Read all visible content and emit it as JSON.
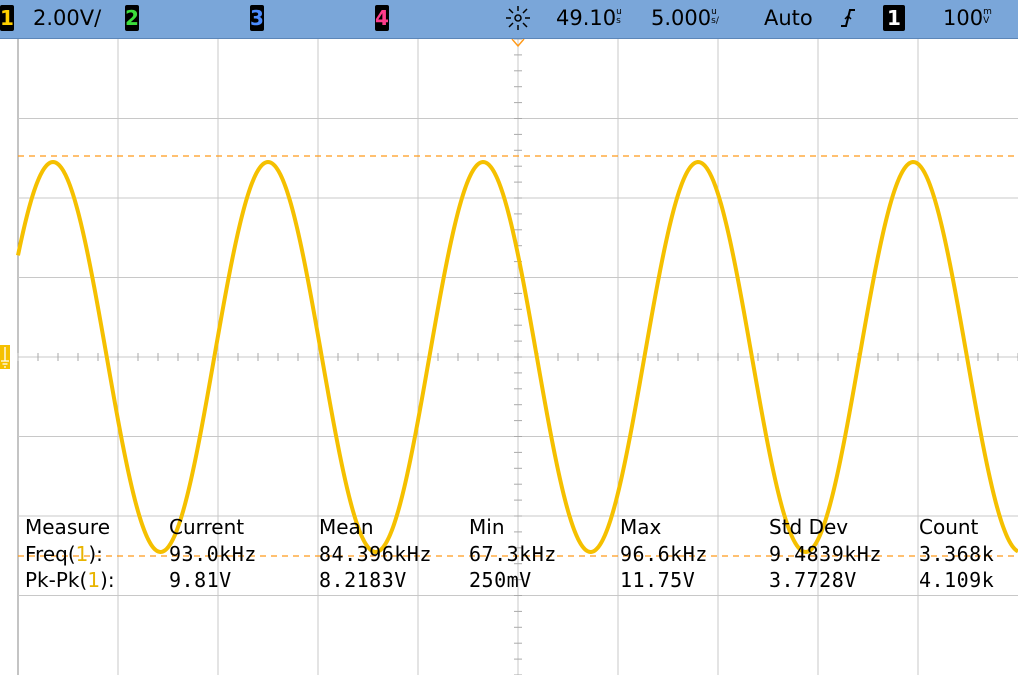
{
  "topbar": {
    "ch1_label": "1",
    "ch1_scale": "2.00V/",
    "ch2_label": "2",
    "ch3_label": "3",
    "ch4_label": "4",
    "acq_icon": "acquisition-running-icon",
    "time_delay": "49.10",
    "time_delay_unit": "u\ns",
    "time_base": "5.000",
    "time_base_unit": "u\ns/",
    "trigger_mode": "Auto",
    "trigger_slope_icon": "rising-edge-icon",
    "trigger_source": "1",
    "trigger_level": "100",
    "trigger_level_unit": "m\nV"
  },
  "colors": {
    "ch1": "#f5c000",
    "ch2": "#3cdc3c",
    "ch3": "#4d8dff",
    "ch4": "#ff3c8c",
    "header_bg": "#7aa6d9",
    "trigger_level_line": "#ff9a1a",
    "grid": "#c8c8c8"
  },
  "waveform": {
    "channel": "1",
    "frequency_khz": 93.0,
    "amplitude_vpp": 9.81,
    "offset_v": 0.0,
    "divisions_x": 10,
    "divisions_y": 8,
    "volts_per_div": 2.0,
    "time_per_div_us": 5.0
  },
  "measure": {
    "headers": [
      "Measure",
      "Current",
      "Mean",
      "Min",
      "Max",
      "Std Dev",
      "Count"
    ],
    "rows": [
      {
        "name": "Freq(",
        "ch": "1",
        "close": "):",
        "current": "93.0kHz",
        "mean": "84.396kHz",
        "min": "67.3kHz",
        "max": "96.6kHz",
        "stddev": "9.4839kHz",
        "count": "3.368k"
      },
      {
        "name": "Pk-Pk(",
        "ch": "1",
        "close": "):",
        "current": "9.81V",
        "mean": "8.2183V",
        "min": "250mV",
        "max": "11.75V",
        "stddev": "3.7728V",
        "count": "4.109k"
      }
    ]
  }
}
